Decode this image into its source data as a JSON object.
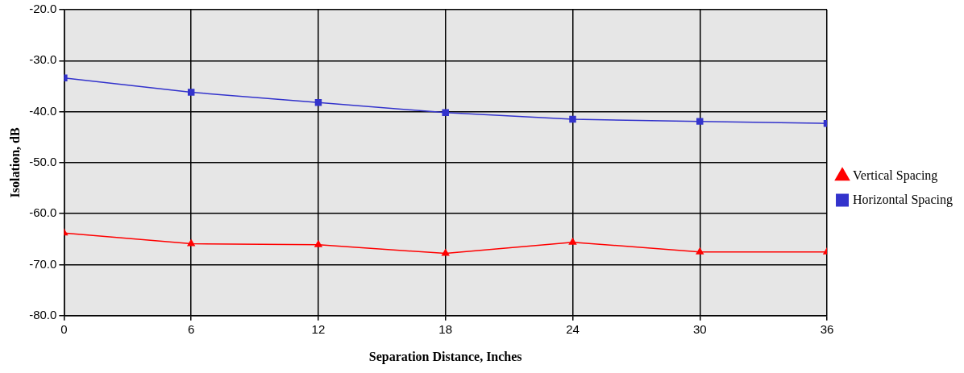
{
  "chart_data": {
    "type": "line",
    "xlabel": "Separation Distance, Inches",
    "ylabel": "Isolation, dB",
    "x": [
      0,
      6,
      12,
      18,
      24,
      30,
      36
    ],
    "series": [
      {
        "name": "Vertical Spacing",
        "color": "#ff0000",
        "marker": "triangle",
        "values": [
          -63.8,
          -65.9,
          -66.1,
          -67.8,
          -65.6,
          -67.5,
          -67.5
        ]
      },
      {
        "name": "Horizontal Spacing",
        "color": "#3333cc",
        "marker": "square",
        "values": [
          -33.4,
          -36.2,
          -38.2,
          -40.2,
          -41.5,
          -41.9,
          -42.3
        ]
      }
    ],
    "xlim": [
      0,
      36
    ],
    "xticks": [
      0,
      6,
      12,
      18,
      24,
      30,
      36
    ],
    "ylim": [
      -80,
      -20
    ],
    "yticks": [
      {
        "value": -80,
        "label": "-80.0"
      },
      {
        "value": -70,
        "label": "-70.0"
      },
      {
        "value": -60,
        "label": "-60.0"
      },
      {
        "value": -50,
        "label": "-50.0"
      },
      {
        "value": -40,
        "label": "-40.0"
      },
      {
        "value": -30,
        "label": "-30.0"
      },
      {
        "value": -20,
        "label": "-20.0"
      }
    ],
    "grid": true,
    "legend": "right",
    "line_style": "solid"
  }
}
